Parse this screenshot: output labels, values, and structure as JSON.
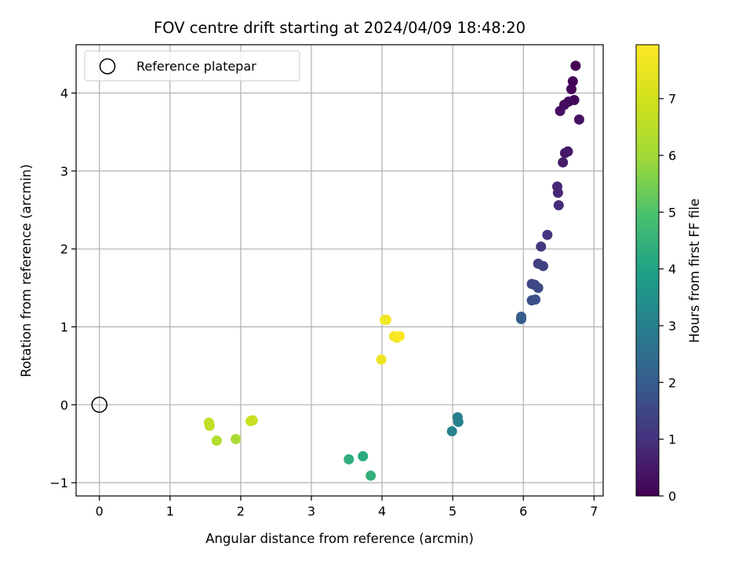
{
  "chart_data": {
    "type": "scatter",
    "title": "FOV centre drift starting at 2024/04/09 18:48:20",
    "xlabel": "Angular distance from reference (arcmin)",
    "ylabel": "Rotation from reference (arcmin)",
    "xlim": [
      -0.33,
      7.13
    ],
    "ylim": [
      -1.17,
      4.62
    ],
    "xticks": [
      0,
      1,
      2,
      3,
      4,
      5,
      6,
      7
    ],
    "yticks": [
      -1,
      0,
      1,
      2,
      3,
      4
    ],
    "grid": true,
    "legend": {
      "position": "top-left",
      "entries": [
        "Reference platepar"
      ]
    },
    "reference_point": {
      "x": 0,
      "y": 0
    },
    "colorbar": {
      "label": "Hours from first FF file",
      "range": [
        0,
        7.95
      ],
      "ticks": [
        0,
        1,
        2,
        3,
        4,
        5,
        6,
        7
      ],
      "colormap": "viridis"
    },
    "points": [
      {
        "x": 6.74,
        "y": 4.35,
        "h": 0.0
      },
      {
        "x": 6.7,
        "y": 4.15,
        "h": 0.05
      },
      {
        "x": 6.68,
        "y": 4.05,
        "h": 0.1
      },
      {
        "x": 6.72,
        "y": 3.91,
        "h": 0.15
      },
      {
        "x": 6.64,
        "y": 3.89,
        "h": 0.2
      },
      {
        "x": 6.58,
        "y": 3.85,
        "h": 0.25
      },
      {
        "x": 6.52,
        "y": 3.77,
        "h": 0.3
      },
      {
        "x": 6.79,
        "y": 3.66,
        "h": 0.35
      },
      {
        "x": 6.63,
        "y": 3.25,
        "h": 0.45
      },
      {
        "x": 6.59,
        "y": 3.23,
        "h": 0.5
      },
      {
        "x": 6.56,
        "y": 3.11,
        "h": 0.55
      },
      {
        "x": 6.48,
        "y": 2.8,
        "h": 0.75
      },
      {
        "x": 6.49,
        "y": 2.72,
        "h": 0.8
      },
      {
        "x": 6.5,
        "y": 2.56,
        "h": 0.85
      },
      {
        "x": 6.34,
        "y": 2.18,
        "h": 1.05
      },
      {
        "x": 6.25,
        "y": 2.03,
        "h": 1.15
      },
      {
        "x": 6.21,
        "y": 1.81,
        "h": 1.3
      },
      {
        "x": 6.28,
        "y": 1.78,
        "h": 1.35
      },
      {
        "x": 6.12,
        "y": 1.55,
        "h": 1.45
      },
      {
        "x": 6.16,
        "y": 1.54,
        "h": 1.5
      },
      {
        "x": 6.21,
        "y": 1.5,
        "h": 1.55
      },
      {
        "x": 6.12,
        "y": 1.34,
        "h": 1.65
      },
      {
        "x": 6.17,
        "y": 1.35,
        "h": 1.7
      },
      {
        "x": 5.97,
        "y": 1.13,
        "h": 2.0
      },
      {
        "x": 5.97,
        "y": 1.1,
        "h": 2.05
      },
      {
        "x": 5.07,
        "y": -0.16,
        "h": 2.95
      },
      {
        "x": 5.08,
        "y": -0.22,
        "h": 3.0
      },
      {
        "x": 4.99,
        "y": -0.34,
        "h": 3.1
      },
      {
        "x": 3.73,
        "y": -0.66,
        "h": 4.25
      },
      {
        "x": 3.53,
        "y": -0.7,
        "h": 4.35
      },
      {
        "x": 3.84,
        "y": -0.91,
        "h": 4.45
      },
      {
        "x": 1.93,
        "y": -0.44,
        "h": 6.15
      },
      {
        "x": 1.66,
        "y": -0.46,
        "h": 6.35
      },
      {
        "x": 1.56,
        "y": -0.27,
        "h": 6.6
      },
      {
        "x": 1.55,
        "y": -0.23,
        "h": 6.65
      },
      {
        "x": 2.14,
        "y": -0.21,
        "h": 6.75
      },
      {
        "x": 2.17,
        "y": -0.2,
        "h": 6.8
      },
      {
        "x": 3.99,
        "y": 0.58,
        "h": 7.6
      },
      {
        "x": 4.04,
        "y": 1.09,
        "h": 7.7
      },
      {
        "x": 4.06,
        "y": 1.09,
        "h": 7.72
      },
      {
        "x": 4.17,
        "y": 0.88,
        "h": 7.8
      },
      {
        "x": 4.21,
        "y": 0.86,
        "h": 7.85
      },
      {
        "x": 4.25,
        "y": 0.88,
        "h": 7.9
      }
    ]
  }
}
